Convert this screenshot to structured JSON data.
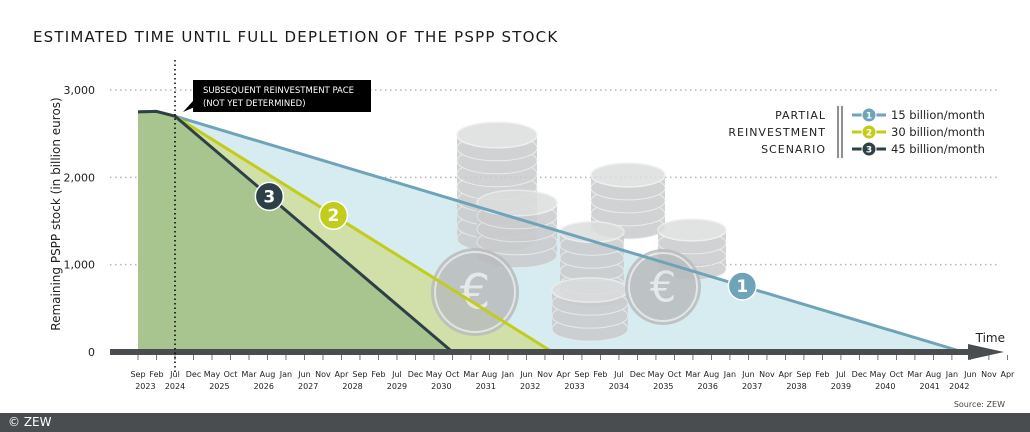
{
  "chart_data": {
    "type": "area",
    "title": "ESTIMATED TIME UNTIL FULL DEPLETION OF THE PSPP STOCK",
    "ylabel": "Remaining PSPP stock (in billion euros)",
    "xlabel": "Time",
    "ylim": [
      0,
      3000
    ],
    "yticks": [
      {
        "value": 0,
        "label": "0"
      },
      {
        "value": 1000,
        "label": "1,000"
      },
      {
        "value": 2000,
        "label": "2,000"
      },
      {
        "value": 3000,
        "label": "3,000"
      }
    ],
    "x_start": "2023-09",
    "x_end": "2042-04",
    "x_ticks": [
      "Sep",
      "Feb",
      "Jul",
      "Dec",
      "May",
      "Oct",
      "Mar",
      "Aug",
      "Jan",
      "Jun",
      "Nov",
      "Apr",
      "Sep",
      "Feb",
      "Jul",
      "Dec",
      "May",
      "Oct",
      "Mar",
      "Aug",
      "Jan",
      "Jun",
      "Nov",
      "Apr",
      "Sep",
      "Feb",
      "Jul",
      "Dec",
      "May",
      "Oct",
      "Mar",
      "Aug",
      "Jan",
      "Jun",
      "Nov",
      "Apr",
      "Sep",
      "Feb",
      "Jul",
      "Dec",
      "May",
      "Oct",
      "Mar",
      "Aug",
      "Jan",
      "Jun",
      "Nov",
      "Apr"
    ],
    "years": [
      "2023",
      "2024",
      "2025",
      "2026",
      "2027",
      "2028",
      "2029",
      "2030",
      "2031",
      "2032",
      "2033",
      "2034",
      "2035",
      "2036",
      "2037",
      "2038",
      "2039",
      "2040",
      "2041",
      "2042"
    ],
    "reinvestment_start": "2024-07",
    "annotation": {
      "line1": "SUBSEQUENT REINVESTMENT PACE",
      "line2": "(NOT YET DETERMINED)"
    },
    "legend": {
      "title_lines": [
        "PARTIAL",
        "REINVESTMENT",
        "SCENARIO"
      ],
      "placement": "top-right"
    },
    "series": [
      {
        "id": "1",
        "name": "15 billion/month",
        "color": "#6fa4b8",
        "fill": "#d7ecf0",
        "points": [
          [
            "2023-09",
            2750
          ],
          [
            "2024-02",
            2755
          ],
          [
            "2024-07",
            2700
          ],
          [
            "2042-04",
            0
          ]
        ]
      },
      {
        "id": "2",
        "name": "30 billion/month",
        "color": "#c1cc1c",
        "fill": "#d1e0a8",
        "points": [
          [
            "2023-09",
            2750
          ],
          [
            "2024-02",
            2755
          ],
          [
            "2024-07",
            2700
          ],
          [
            "2033-01",
            0
          ]
        ]
      },
      {
        "id": "3",
        "name": "45 billion/month",
        "color": "#2d4047",
        "fill": "#a8c58f",
        "points": [
          [
            "2023-09",
            2750
          ],
          [
            "2024-02",
            2755
          ],
          [
            "2024-07",
            2700
          ],
          [
            "2030-10",
            0
          ]
        ]
      }
    ],
    "grid": "horizontal-dotted",
    "source": "Source: ZEW"
  },
  "footer": {
    "copyright": "© ZEW"
  },
  "colors": {
    "axis": "#4a4d50",
    "grid": "#b5b5b5",
    "annotation_bg": "#000000",
    "coins": "#c9cbcc"
  }
}
